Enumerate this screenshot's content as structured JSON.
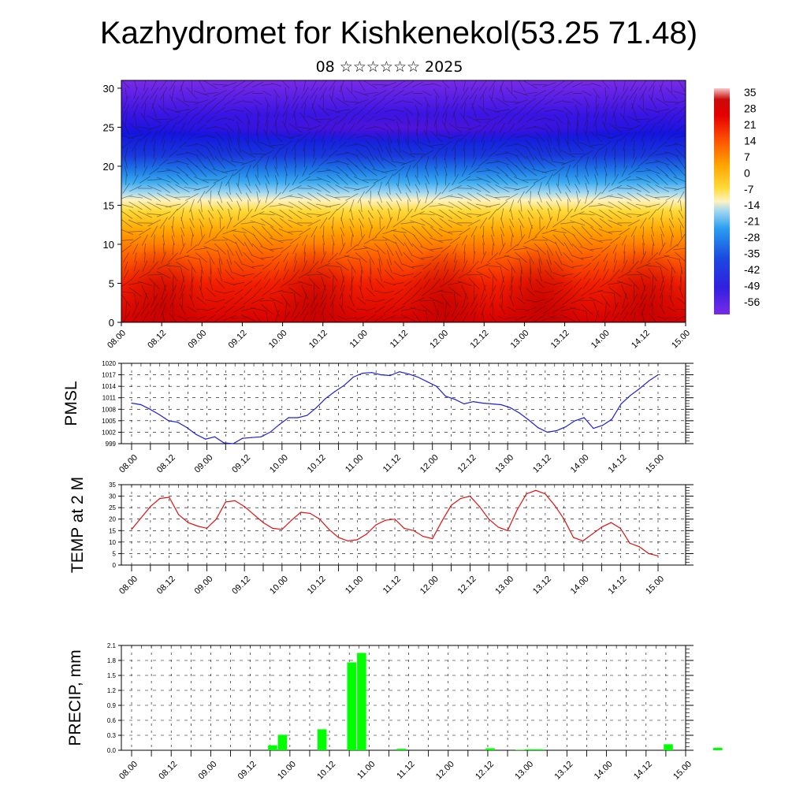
{
  "header": {
    "title": "Kazhydromet for Kishkenekol(53.25 71.48)",
    "subtitle": "08 ☆☆☆☆☆☆ 2025"
  },
  "colors": {
    "pmsl_line": "#1f1fd6",
    "temp_line": "#e01010",
    "precip_bar": "#00ff00",
    "grid": "#000000"
  },
  "chart_data": [
    {
      "type": "heatmap",
      "title": "",
      "xlabel": "",
      "ylabel": "",
      "x_tick_labels": [
        "08.00",
        "08.12",
        "09.00",
        "09.12",
        "10.00",
        "10.12",
        "11.00",
        "11.12",
        "12.00",
        "12.12",
        "13.00",
        "13.12",
        "14.00",
        "14.12",
        "15.00"
      ],
      "y_ticks": [
        0,
        5,
        10,
        15,
        20,
        25,
        30
      ],
      "ylim": [
        0,
        31
      ],
      "overlay": "wind vectors",
      "colorbar": {
        "labels": [
          "35",
          "28",
          "21",
          "14",
          "7",
          "0",
          "-7",
          "-14",
          "-21",
          "-28",
          "-35",
          "-42",
          "-49",
          "-56"
        ],
        "range": [
          -60,
          38
        ]
      },
      "field_description": {
        "surface_warm_core_x_indices": [
          1.0,
          4.8,
          8.0,
          10.4,
          13.0
        ],
        "freezing_level_km": 15,
        "coldest_level_km": 25
      }
    },
    {
      "type": "line",
      "title": "",
      "ylabel": "PMSL",
      "xlabel": "",
      "x_tick_labels": [
        "08.00",
        "08.12",
        "09.00",
        "09.12",
        "10.00",
        "10.12",
        "11.00",
        "11.12",
        "12.00",
        "12.12",
        "13.00",
        "13.12",
        "14.00",
        "14.12",
        "15.00"
      ],
      "y_tick_labels": [
        "1020",
        "1017",
        "1014",
        "1011",
        "1008",
        "1005",
        "1002",
        "999"
      ],
      "ylim": [
        999,
        1020
      ],
      "grid": true,
      "series": [
        {
          "values": [
            1009.6,
            1009.2,
            1008.0,
            1006.6,
            1005.0,
            1004.6,
            1003.2,
            1001.4,
            1000.2,
            1000.8,
            999.2,
            999.0,
            1000.4,
            1000.6,
            1000.8,
            1002.0,
            1004.0,
            1005.8,
            1005.8,
            1006.4,
            1008.4,
            1010.8,
            1012.6,
            1014.2,
            1016.4,
            1017.4,
            1017.6,
            1017.0,
            1016.8,
            1017.8,
            1017.2,
            1016.4,
            1015.2,
            1014.0,
            1011.4,
            1010.6,
            1009.4,
            1010.0,
            1009.6,
            1009.4,
            1009.2,
            1008.4,
            1007.0,
            1005.2,
            1003.2,
            1002.0,
            1002.4,
            1003.4,
            1005.0,
            1005.8,
            1003.0,
            1003.8,
            1005.4,
            1009.4,
            1011.6,
            1013.4,
            1015.4,
            1017.0
          ]
        }
      ]
    },
    {
      "type": "line",
      "title": "",
      "ylabel": "TEMP at 2 M",
      "xlabel": "",
      "x_tick_labels": [
        "08.00",
        "08.12",
        "09.00",
        "09.12",
        "10.00",
        "10.12",
        "11.00",
        "11.12",
        "12.00",
        "12.12",
        "13.00",
        "13.12",
        "14.00",
        "14.12",
        "15.00"
      ],
      "y_tick_labels": [
        "35",
        "30",
        "25",
        "20",
        "15",
        "10",
        "5",
        "0"
      ],
      "ylim": [
        0,
        35
      ],
      "grid": true,
      "series": [
        {
          "values": [
            15.5,
            20.5,
            25.5,
            29.0,
            29.5,
            22.0,
            18.5,
            17.0,
            16.0,
            20.0,
            27.5,
            28.0,
            25.5,
            22.0,
            18.5,
            16.0,
            15.5,
            19.5,
            23.0,
            22.5,
            20.0,
            15.5,
            12.0,
            10.5,
            11.0,
            13.5,
            17.5,
            19.5,
            20.0,
            16.0,
            15.0,
            12.5,
            11.5,
            19.0,
            26.0,
            29.0,
            30.0,
            25.5,
            20.0,
            16.5,
            15.0,
            24.0,
            31.0,
            32.5,
            31.0,
            26.0,
            20.0,
            12.0,
            10.5,
            13.5,
            16.5,
            18.5,
            16.0,
            9.5,
            8.0,
            5.0,
            4.0
          ]
        }
      ]
    },
    {
      "type": "bar",
      "title": "",
      "ylabel": "PRECIP, mm",
      "xlabel": "",
      "x_tick_labels": [
        "08.00",
        "08.12",
        "09.00",
        "09.12",
        "10.00",
        "10.12",
        "11.00",
        "11.12",
        "12.00",
        "12.12",
        "13.00",
        "13.12",
        "14.00",
        "14.12",
        "15.00"
      ],
      "y_tick_labels": [
        "2.1",
        "1.8",
        "1.5",
        "1.2",
        "0.9",
        "0.6",
        "0.3",
        "0.0"
      ],
      "ylim": [
        0,
        2.1
      ],
      "grid": true,
      "bar_x_index_offset": 0.25,
      "values": [
        0,
        0,
        0,
        0,
        0,
        0,
        0,
        0,
        0,
        0,
        0,
        0,
        0,
        0,
        0.1,
        0.31,
        0,
        0,
        0,
        0.42,
        0,
        0,
        1.76,
        1.95,
        0,
        0,
        0,
        0.03,
        0,
        0,
        0,
        0,
        0,
        0,
        0,
        0,
        0.04,
        0,
        0,
        0.01,
        0.02,
        0.02,
        0,
        0,
        0,
        0,
        0,
        0,
        0,
        0,
        0,
        0,
        0,
        0,
        0.12,
        0,
        0,
        0,
        0,
        0.05,
        0
      ]
    }
  ]
}
